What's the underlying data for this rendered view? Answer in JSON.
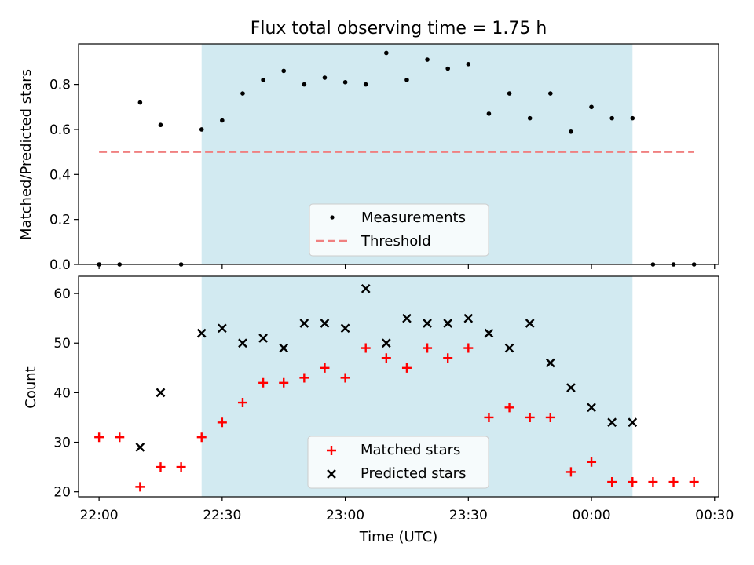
{
  "figure": {
    "title": "Flux total observing time = 1.75 h",
    "shared_xlabel": "Time (UTC)"
  },
  "colors": {
    "span": "#add8e6",
    "measurements": "#000000",
    "threshold": "#f08080",
    "matched": "#ff0000",
    "predicted": "#000000"
  },
  "chart_data": [
    {
      "type": "scatter",
      "ylabel": "Matched/Predicted stars",
      "ylim": [
        0,
        0.98
      ],
      "yticks": [
        "0.0",
        "0.2",
        "0.4",
        "0.6",
        "0.8"
      ],
      "ytick_values": [
        0,
        0.2,
        0.4,
        0.6,
        0.8
      ],
      "xlim": [
        "21:55",
        "00:31"
      ],
      "xticks": [
        "22:00",
        "22:30",
        "23:00",
        "23:30",
        "00:00",
        "00:30"
      ],
      "shaded_span": [
        "22:25",
        "00:10"
      ],
      "legend": {
        "placement": "lower center",
        "entries": [
          "Measurements",
          "Threshold"
        ]
      },
      "threshold": {
        "name": "Threshold",
        "y": 0.5,
        "x": [
          "22:00",
          "00:25"
        ]
      },
      "series": [
        {
          "name": "Measurements",
          "marker": "dot",
          "x": [
            "22:00",
            "22:05",
            "22:10",
            "22:15",
            "22:20",
            "22:25",
            "22:30",
            "22:35",
            "22:40",
            "22:45",
            "22:50",
            "22:55",
            "23:00",
            "23:05",
            "23:10",
            "23:15",
            "23:20",
            "23:25",
            "23:30",
            "23:35",
            "23:40",
            "23:45",
            "23:50",
            "23:55",
            "00:00",
            "00:05",
            "00:10",
            "00:15",
            "00:20",
            "00:25"
          ],
          "y": [
            0.0,
            0.0,
            0.72,
            0.62,
            0.0,
            0.6,
            0.64,
            0.76,
            0.82,
            0.86,
            0.8,
            0.83,
            0.81,
            0.8,
            0.94,
            0.82,
            0.91,
            0.87,
            0.89,
            0.67,
            0.76,
            0.65,
            0.76,
            0.59,
            0.7,
            0.65,
            0.65,
            0.0,
            0.0,
            0.0
          ]
        }
      ]
    },
    {
      "type": "scatter",
      "ylabel": "Count",
      "xlabel": "Time (UTC)",
      "ylim": [
        19,
        63.5
      ],
      "yticks": [
        "20",
        "30",
        "40",
        "50",
        "60"
      ],
      "ytick_values": [
        20,
        30,
        40,
        50,
        60
      ],
      "xlim": [
        "21:55",
        "00:31"
      ],
      "xticks": [
        "22:00",
        "22:30",
        "23:00",
        "23:30",
        "00:00",
        "00:30"
      ],
      "shaded_span": [
        "22:25",
        "00:10"
      ],
      "legend": {
        "placement": "lower center",
        "entries": [
          "Matched stars",
          "Predicted stars"
        ]
      },
      "series": [
        {
          "name": "Matched stars",
          "marker": "plus",
          "x": [
            "22:00",
            "22:05",
            "22:10",
            "22:15",
            "22:20",
            "22:25",
            "22:30",
            "22:35",
            "22:40",
            "22:45",
            "22:50",
            "22:55",
            "23:00",
            "23:05",
            "23:10",
            "23:15",
            "23:20",
            "23:25",
            "23:30",
            "23:35",
            "23:40",
            "23:45",
            "23:50",
            "23:55",
            "00:00",
            "00:05",
            "00:10",
            "00:15",
            "00:20",
            "00:25"
          ],
          "y": [
            31,
            31,
            21,
            25,
            25,
            31,
            34,
            38,
            42,
            42,
            43,
            45,
            43,
            49,
            47,
            45,
            49,
            47,
            49,
            35,
            37,
            35,
            35,
            24,
            26,
            22,
            22,
            22,
            22,
            22
          ]
        },
        {
          "name": "Predicted stars",
          "marker": "x",
          "x": [
            "22:10",
            "22:15",
            "22:25",
            "22:30",
            "22:35",
            "22:40",
            "22:45",
            "22:50",
            "22:55",
            "23:00",
            "23:05",
            "23:10",
            "23:15",
            "23:20",
            "23:25",
            "23:30",
            "23:35",
            "23:40",
            "23:45",
            "23:50",
            "23:55",
            "00:00",
            "00:05",
            "00:10"
          ],
          "y": [
            29,
            40,
            52,
            53,
            50,
            51,
            49,
            54,
            54,
            53,
            61,
            50,
            55,
            54,
            54,
            55,
            52,
            49,
            54,
            46,
            41,
            37,
            34,
            34
          ]
        }
      ]
    }
  ]
}
